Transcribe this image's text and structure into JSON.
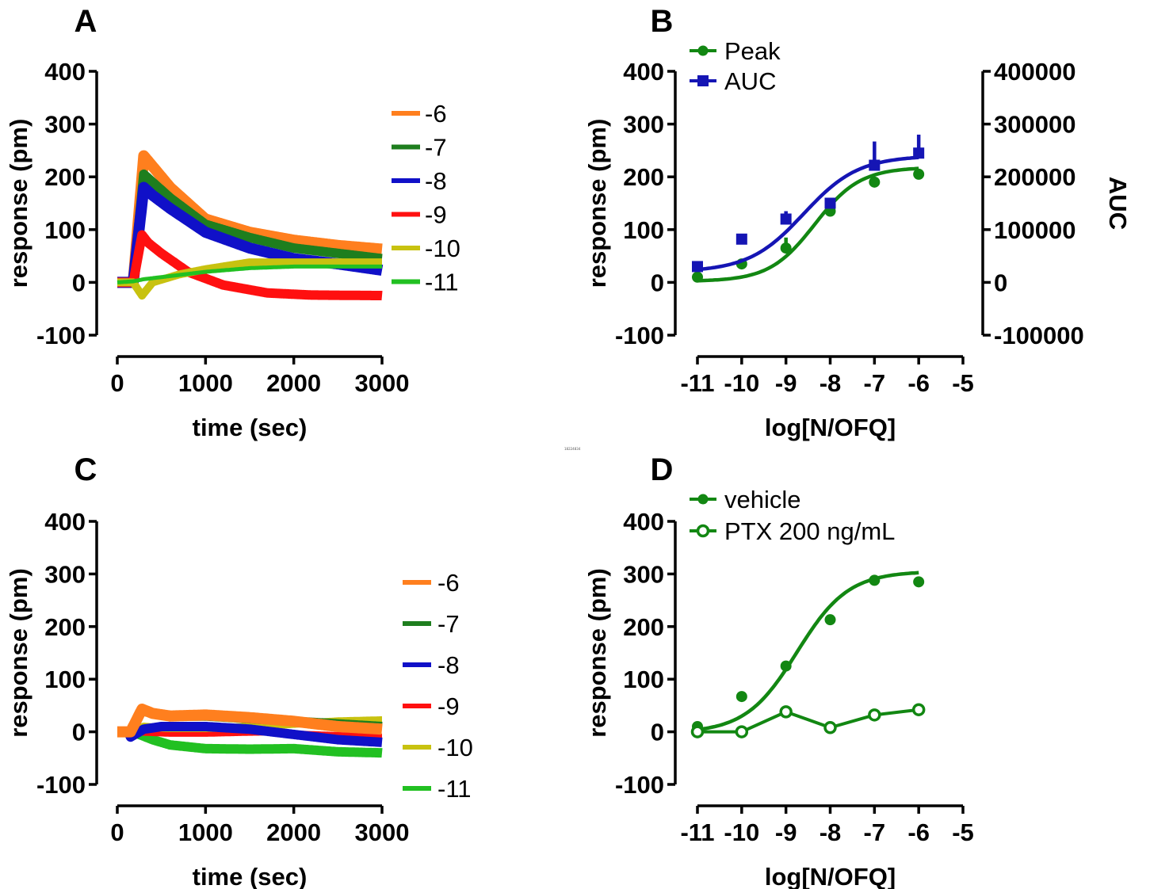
{
  "figure": {
    "center_tag": "18224834"
  },
  "chart_data": [
    {
      "panel": "A",
      "type": "line",
      "xlabel": "time (sec)",
      "ylabel": "response (pm)",
      "xlim": [
        0,
        3000
      ],
      "ylim": [
        -100,
        400
      ],
      "xticks": [
        "0",
        "1000",
        "2000",
        "3000"
      ],
      "yticks": [
        "-100",
        "0",
        "100",
        "200",
        "300",
        "400"
      ],
      "legend_position": "right",
      "series": [
        {
          "name": "-6",
          "color": "#ff7f1e",
          "x": [
            0,
            180,
            300,
            400,
            600,
            1000,
            1500,
            2000,
            2500,
            3000
          ],
          "y": [
            0,
            0,
            240,
            220,
            180,
            120,
            95,
            80,
            70,
            63
          ],
          "band": 14
        },
        {
          "name": "-7",
          "color": "#1e7e1e",
          "x": [
            0,
            180,
            300,
            400,
            600,
            1000,
            1500,
            2000,
            2500,
            3000
          ],
          "y": [
            0,
            0,
            205,
            190,
            160,
            110,
            85,
            65,
            55,
            45
          ],
          "band": 12
        },
        {
          "name": "-8",
          "color": "#1010c8",
          "x": [
            0,
            180,
            300,
            400,
            600,
            1000,
            1500,
            2000,
            2500,
            3000
          ],
          "y": [
            0,
            0,
            180,
            165,
            140,
            95,
            65,
            45,
            35,
            23
          ],
          "band": 14
        },
        {
          "name": "-9",
          "color": "#ff1010",
          "x": [
            0,
            180,
            280,
            350,
            500,
            800,
            1200,
            1700,
            2200,
            3000
          ],
          "y": [
            0,
            0,
            90,
            75,
            55,
            20,
            -5,
            -20,
            -24,
            -25
          ],
          "band": 12
        },
        {
          "name": "-10",
          "color": "#c8c210",
          "x": [
            0,
            180,
            240,
            280,
            400,
            700,
            1000,
            1500,
            2000,
            3000
          ],
          "y": [
            0,
            0,
            -15,
            -25,
            0,
            15,
            25,
            38,
            38,
            38
          ],
          "band": 10
        },
        {
          "name": "-11",
          "color": "#22c022",
          "x": [
            0,
            180,
            300,
            600,
            1000,
            1500,
            2000,
            3000
          ],
          "y": [
            0,
            2,
            6,
            12,
            20,
            27,
            30,
            30
          ],
          "band": 5
        }
      ]
    },
    {
      "panel": "B",
      "type": "scatter",
      "xlabel": "log[N/OFQ]",
      "ylabel": "response (pm)",
      "y2label": "AUC",
      "xlim": [
        -11,
        -5
      ],
      "ylim": [
        -100,
        400
      ],
      "y2lim": [
        -100000,
        400000
      ],
      "xticks": [
        "-11",
        "-10",
        "-9",
        "-8",
        "-7",
        "-6",
        "-5"
      ],
      "yticks": [
        "-100",
        "0",
        "100",
        "200",
        "300",
        "400"
      ],
      "y2ticks": [
        "-100000",
        "0",
        "100000",
        "200000",
        "300000",
        "400000"
      ],
      "legend_position": "top-left",
      "series": [
        {
          "name": "Peak",
          "color": "#128712",
          "marker": "circle",
          "axis": "left",
          "x": [
            -11,
            -10,
            -9,
            -8,
            -7,
            -6
          ],
          "y": [
            10,
            35,
            65,
            135,
            190,
            205
          ],
          "err": [
            0,
            5,
            20,
            5,
            5,
            5
          ],
          "fit": {
            "bottom": 2,
            "top": 218,
            "logEC50": -8.35,
            "hill": 0.85
          }
        },
        {
          "name": "AUC",
          "color": "#1515b4",
          "marker": "square",
          "axis": "right",
          "x": [
            -11,
            -10,
            -9,
            -8,
            -7,
            -6
          ],
          "y": [
            30000,
            82000,
            120000,
            150000,
            222000,
            245000
          ],
          "err": [
            5000,
            10000,
            15000,
            10000,
            45000,
            35000
          ],
          "fit": {
            "bottom": 20000,
            "top": 240000,
            "logEC50": -8.6,
            "hill": 0.7
          }
        }
      ]
    },
    {
      "panel": "C",
      "type": "line",
      "xlabel": "time (sec)",
      "ylabel": "response (pm)",
      "xlim": [
        0,
        3000
      ],
      "ylim": [
        -100,
        400
      ],
      "xticks": [
        "0",
        "1000",
        "2000",
        "3000"
      ],
      "yticks": [
        "-100",
        "0",
        "100",
        "200",
        "300",
        "400"
      ],
      "legend_position": "right",
      "series": [
        {
          "name": "-11",
          "color": "#22c022",
          "x": [
            0,
            150,
            250,
            400,
            600,
            1000,
            1500,
            2000,
            2500,
            3000
          ],
          "y": [
            0,
            0,
            -5,
            -15,
            -25,
            -32,
            -33,
            -32,
            -38,
            -40
          ],
          "band": 12
        },
        {
          "name": "-10",
          "color": "#c8c210",
          "x": [
            0,
            150,
            300,
            600,
            1000,
            1500,
            2000,
            2500,
            3000
          ],
          "y": [
            0,
            0,
            10,
            5,
            5,
            10,
            15,
            20,
            22
          ],
          "band": 10
        },
        {
          "name": "-9",
          "color": "#ff1010",
          "x": [
            0,
            150,
            300,
            600,
            1000,
            1500,
            2000,
            2500,
            3000
          ],
          "y": [
            0,
            0,
            -3,
            -5,
            -5,
            -3,
            -2,
            -5,
            -8
          ],
          "band": 6
        },
        {
          "name": "-8",
          "color": "#1010c8",
          "x": [
            0,
            120,
            150,
            200,
            300,
            500,
            1000,
            1500,
            2000,
            2500,
            3000
          ],
          "y": [
            0,
            0,
            -10,
            -5,
            5,
            10,
            10,
            5,
            -5,
            -15,
            -20
          ],
          "band": 12
        },
        {
          "name": "-7",
          "color": "#1e7e1e",
          "x": [
            0,
            150,
            280,
            400,
            600,
            1000,
            1500,
            2000,
            2500,
            3000
          ],
          "y": [
            0,
            0,
            40,
            35,
            30,
            30,
            25,
            20,
            15,
            10
          ],
          "band": 12
        },
        {
          "name": "-6",
          "color": "#ff7f1e",
          "x": [
            0,
            150,
            280,
            400,
            600,
            1000,
            1500,
            2000,
            2500,
            3000
          ],
          "y": [
            0,
            0,
            43,
            35,
            30,
            32,
            27,
            20,
            10,
            5
          ],
          "band": 14
        }
      ]
    },
    {
      "panel": "D",
      "type": "scatter",
      "xlabel": "log[N/OFQ]",
      "ylabel": "response (pm)",
      "xlim": [
        -11,
        -5
      ],
      "ylim": [
        -100,
        400
      ],
      "xticks": [
        "-11",
        "-10",
        "-9",
        "-8",
        "-7",
        "-6",
        "-5"
      ],
      "yticks": [
        "-100",
        "0",
        "100",
        "200",
        "300",
        "400"
      ],
      "legend_position": "top-left",
      "series": [
        {
          "name": "vehicle",
          "color": "#128712",
          "marker": "filled-circle",
          "x": [
            -11,
            -10,
            -9,
            -8,
            -7,
            -6
          ],
          "y": [
            10,
            67,
            125,
            213,
            288,
            285
          ],
          "fit": {
            "bottom": -2,
            "top": 305,
            "logEC50": -8.75,
            "hill": 0.75
          }
        },
        {
          "name": "PTX 200 ng/mL",
          "color": "#128712",
          "marker": "open-circle",
          "connect": true,
          "x": [
            -11,
            -10,
            -9,
            -8,
            -7,
            -6
          ],
          "y": [
            0,
            0,
            38,
            8,
            32,
            42
          ]
        }
      ]
    }
  ]
}
